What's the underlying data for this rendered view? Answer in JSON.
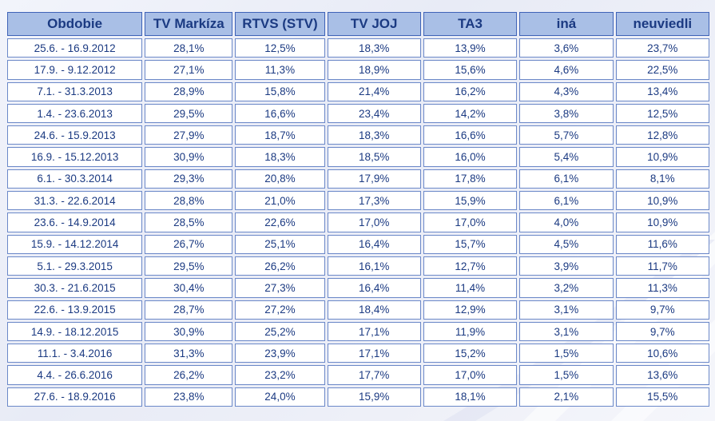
{
  "table": {
    "headers": [
      "Obdobie",
      "TV Markíza",
      "RTVS (STV)",
      "TV JOJ",
      "TA3",
      "iná",
      "neuviedli"
    ],
    "rows": [
      [
        "25.6. - 16.9.2012",
        "28,1%",
        "12,5%",
        "18,3%",
        "13,9%",
        "3,6%",
        "23,7%"
      ],
      [
        "17.9. - 9.12.2012",
        "27,1%",
        "11,3%",
        "18,9%",
        "15,6%",
        "4,6%",
        "22,5%"
      ],
      [
        "7.1. - 31.3.2013",
        "28,9%",
        "15,8%",
        "21,4%",
        "16,2%",
        "4,3%",
        "13,4%"
      ],
      [
        "1.4. - 23.6.2013",
        "29,5%",
        "16,6%",
        "23,4%",
        "14,2%",
        "3,8%",
        "12,5%"
      ],
      [
        "24.6. - 15.9.2013",
        "27,9%",
        "18,7%",
        "18,3%",
        "16,6%",
        "5,7%",
        "12,8%"
      ],
      [
        "16.9. - 15.12.2013",
        "30,9%",
        "18,3%",
        "18,5%",
        "16,0%",
        "5,4%",
        "10,9%"
      ],
      [
        "6.1. - 30.3.2014",
        "29,3%",
        "20,8%",
        "17,9%",
        "17,8%",
        "6,1%",
        "8,1%"
      ],
      [
        "31.3. - 22.6.2014",
        "28,8%",
        "21,0%",
        "17,3%",
        "15,9%",
        "6,1%",
        "10,9%"
      ],
      [
        "23.6. - 14.9.2014",
        "28,5%",
        "22,6%",
        "17,0%",
        "17,0%",
        "4,0%",
        "10,9%"
      ],
      [
        "15.9. - 14.12.2014",
        "26,7%",
        "25,1%",
        "16,4%",
        "15,7%",
        "4,5%",
        "11,6%"
      ],
      [
        "5.1. - 29.3.2015",
        "29,5%",
        "26,2%",
        "16,1%",
        "12,7%",
        "3,9%",
        "11,7%"
      ],
      [
        "30.3. - 21.6.2015",
        "30,4%",
        "27,3%",
        "16,4%",
        "11,4%",
        "3,2%",
        "11,3%"
      ],
      [
        "22.6. - 13.9.2015",
        "28,7%",
        "27,2%",
        "18,4%",
        "12,9%",
        "3,1%",
        "9,7%"
      ],
      [
        "14.9. - 18.12.2015",
        "30,9%",
        "25,2%",
        "17,1%",
        "11,9%",
        "3,1%",
        "9,7%"
      ],
      [
        "11.1. - 3.4.2016",
        "31,3%",
        "23,9%",
        "17,1%",
        "15,2%",
        "1,5%",
        "10,6%"
      ],
      [
        "4.4. - 26.6.2016",
        "26,2%",
        "23,2%",
        "17,7%",
        "17,0%",
        "1,5%",
        "13,6%"
      ],
      [
        "27.6. - 18.9.2016",
        "23,8%",
        "24,0%",
        "15,9%",
        "18,1%",
        "2,1%",
        "15,5%"
      ]
    ]
  },
  "colors": {
    "header_bg": "#a9bfe6",
    "header_text": "#1b3a82",
    "cell_text": "#1b3a82",
    "border": "#3f63b7"
  }
}
